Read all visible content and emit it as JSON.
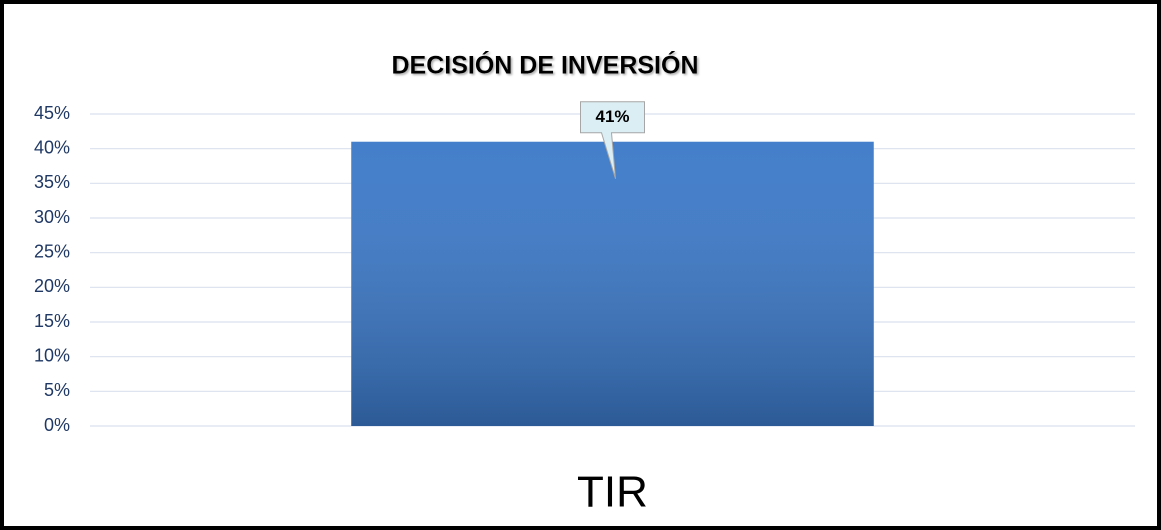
{
  "chart_data": {
    "type": "bar",
    "title": "DECISIÓN DE INVERSIÓN",
    "categories": [
      "TIR"
    ],
    "values": [
      41
    ],
    "value_labels": [
      "41%"
    ],
    "color": "#3a78c8",
    "ylim": [
      0,
      45
    ],
    "yticks": [
      {
        "value": 0,
        "label": "0%"
      },
      {
        "value": 5,
        "label": "5%"
      },
      {
        "value": 10,
        "label": "10%"
      },
      {
        "value": 15,
        "label": "15%"
      },
      {
        "value": 20,
        "label": "20%"
      },
      {
        "value": 25,
        "label": "25%"
      },
      {
        "value": 30,
        "label": "30%"
      },
      {
        "value": 35,
        "label": "35%"
      },
      {
        "value": 40,
        "label": "40%"
      },
      {
        "value": 45,
        "label": "45%"
      }
    ],
    "grid": true
  }
}
